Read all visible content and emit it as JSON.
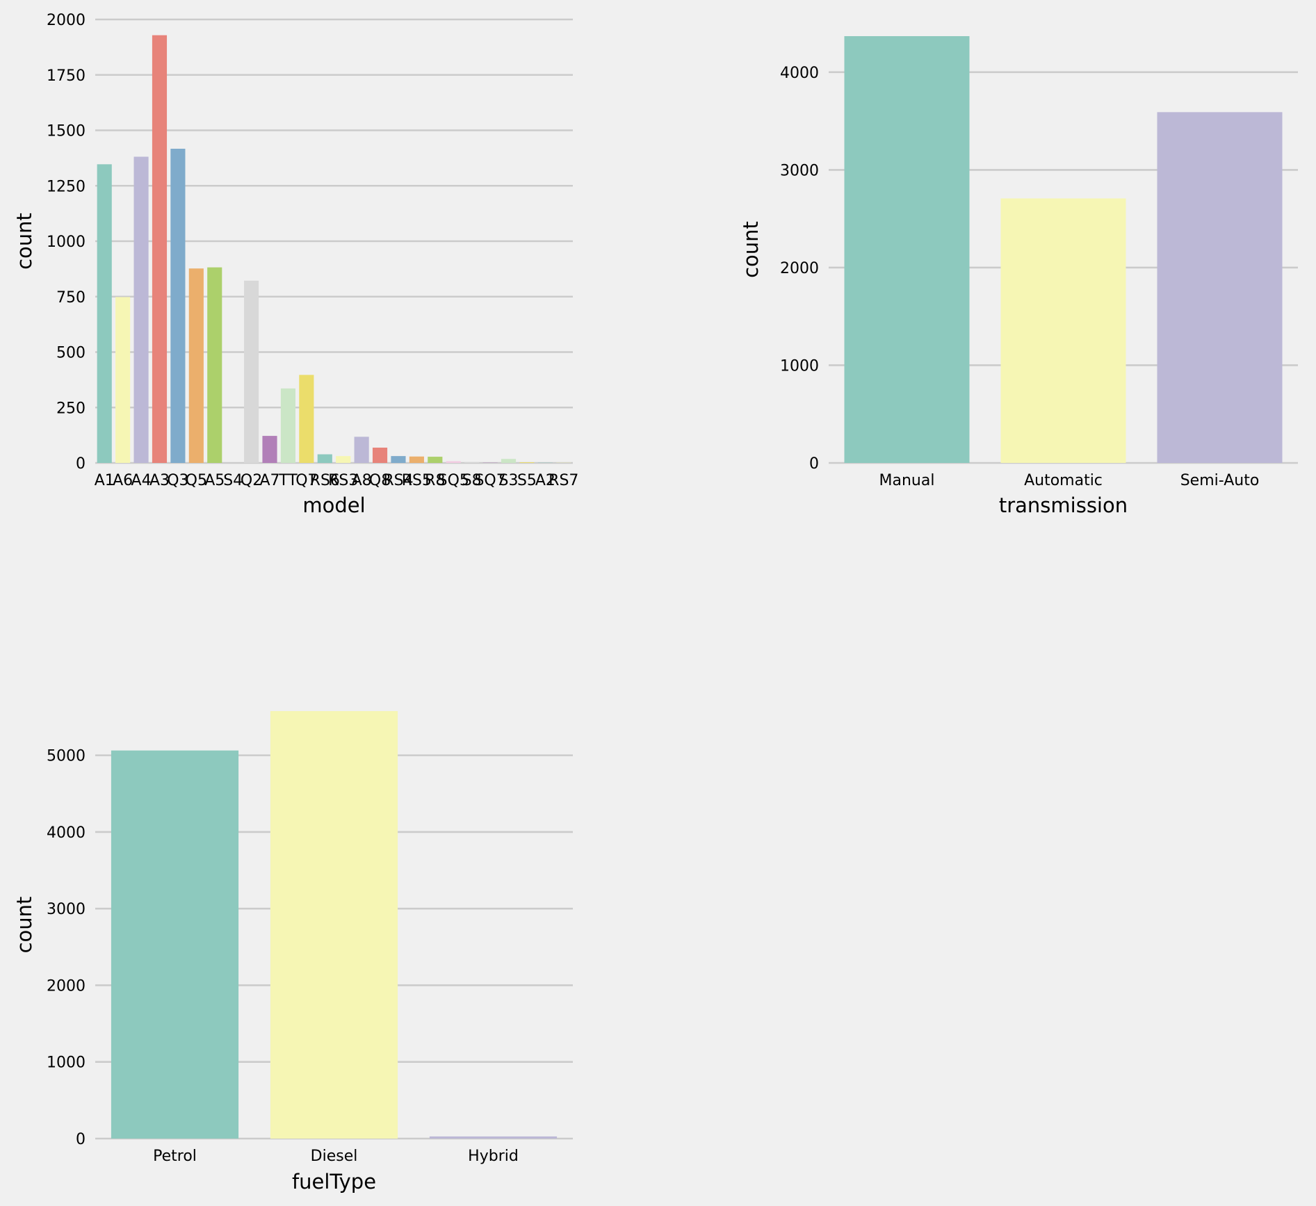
{
  "figure": {
    "background": "#f0f0f0",
    "grid_color": "#cbcbcb"
  },
  "palette": [
    "#8dc9be",
    "#f6f6b4",
    "#bcb8d6",
    "#e7837a",
    "#7fabcb",
    "#ebaf6c",
    "#acd06b",
    "#f2cde3",
    "#d8d8d8",
    "#b17fb8",
    "#cbe6c6",
    "#ebdd6b"
  ],
  "chart_data": [
    {
      "type": "bar",
      "title": "",
      "xlabel": "model",
      "ylabel": "count",
      "ylim": [
        0,
        2000
      ],
      "yticks": [
        0,
        250,
        500,
        750,
        1000,
        1250,
        1500,
        1750,
        2000
      ],
      "ytick_labels": [
        "0",
        "250",
        "500",
        "750",
        "1000",
        "1250",
        "1500",
        "1750",
        "2000"
      ],
      "categories": [
        "A1",
        "A6",
        "A4",
        "A3",
        "Q3",
        "Q5",
        "A5",
        "S4",
        "Q2",
        "A7",
        "TT",
        "Q7",
        "RS6",
        "RS3",
        "A8",
        "Q8",
        "RS4",
        "RS5",
        "R8",
        "SQ5",
        "S8",
        "SQ7",
        "S3",
        "S5",
        "A2",
        "RS7"
      ],
      "values": [
        1347,
        748,
        1381,
        1929,
        1417,
        877,
        882,
        0,
        822,
        122,
        336,
        397,
        39,
        31,
        118,
        69,
        31,
        29,
        28,
        8,
        4,
        1,
        18,
        3,
        1,
        1
      ],
      "grid": true
    },
    {
      "type": "bar",
      "title": "",
      "xlabel": "transmission",
      "ylabel": "count",
      "ylim": [
        0,
        4369
      ],
      "yticks": [
        0,
        1000,
        2000,
        3000,
        4000
      ],
      "ytick_labels": [
        "0",
        "1000",
        "2000",
        "3000",
        "4000"
      ],
      "categories": [
        "Manual",
        "Automatic",
        "Semi-Auto"
      ],
      "values": [
        4369,
        2708,
        3591
      ],
      "grid": true
    },
    {
      "type": "bar",
      "title": "",
      "xlabel": "fuelType",
      "ylabel": "count",
      "ylim": [
        0,
        5577
      ],
      "yticks": [
        0,
        1000,
        2000,
        3000,
        4000,
        5000
      ],
      "ytick_labels": [
        "0",
        "1000",
        "2000",
        "3000",
        "4000",
        "5000"
      ],
      "categories": [
        "Petrol",
        "Diesel",
        "Hybrid"
      ],
      "values": [
        5063,
        5577,
        28
      ],
      "grid": true
    }
  ]
}
